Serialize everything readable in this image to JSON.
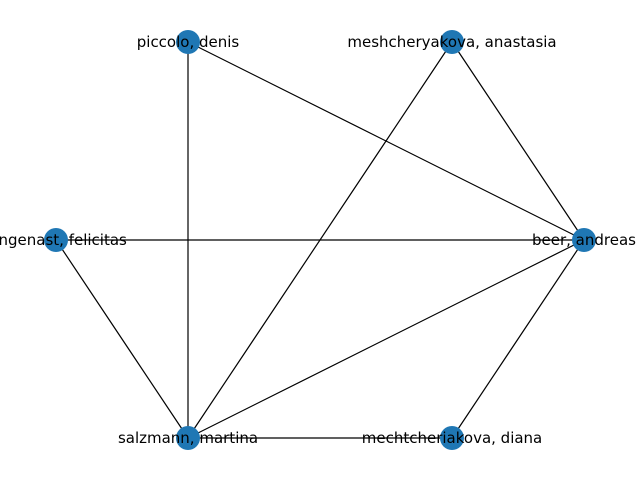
{
  "graph": {
    "node_color": "#1f77b4",
    "edge_color": "#000000",
    "nodes": [
      {
        "id": "piccolo",
        "label": "piccolo, denis"
      },
      {
        "id": "meshcheryakova",
        "label": "meshcheryakova, anastasia"
      },
      {
        "id": "langenast",
        "label": "langenast, felicitas"
      },
      {
        "id": "beer",
        "label": "beer, andreas"
      },
      {
        "id": "salzmann",
        "label": "salzmann, martina"
      },
      {
        "id": "mechtcheriakova",
        "label": "mechtcheriakova, diana"
      }
    ],
    "edges": [
      [
        "piccolo",
        "salzmann"
      ],
      [
        "piccolo",
        "beer"
      ],
      [
        "meshcheryakova",
        "salzmann"
      ],
      [
        "meshcheryakova",
        "beer"
      ],
      [
        "langenast",
        "beer"
      ],
      [
        "langenast",
        "salzmann"
      ],
      [
        "beer",
        "salzmann"
      ],
      [
        "beer",
        "mechtcheriakova"
      ],
      [
        "salzmann",
        "mechtcheriakova"
      ]
    ]
  }
}
